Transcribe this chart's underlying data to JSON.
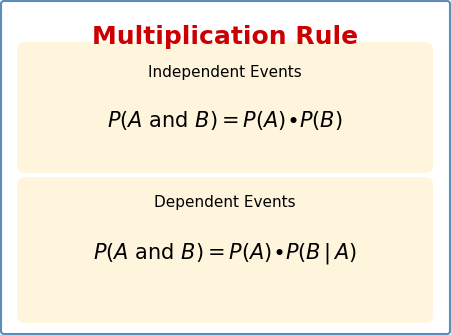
{
  "title": "Multiplication Rule",
  "title_color": "#CC0000",
  "title_fontsize": 18,
  "box_bg_color": "#FFF5DC",
  "border_color": "#5B8DB8",
  "bg_color": "#FFFFFF",
  "box1_label": "Independent Events",
  "box2_label": "Dependent Events",
  "label_fontsize": 11,
  "formula_fontsize": 15
}
